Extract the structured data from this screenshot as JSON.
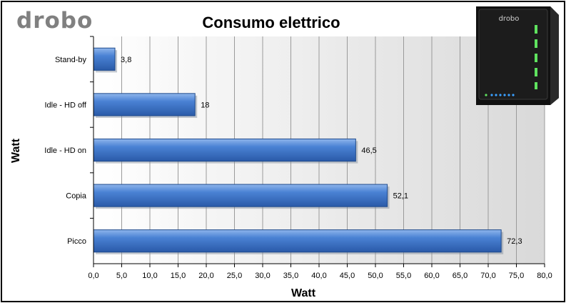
{
  "brand": {
    "logo_text": "drobo"
  },
  "chart_data": {
    "type": "bar",
    "orientation": "horizontal",
    "title": "Consumo elettrico",
    "xlabel": "Watt",
    "ylabel": "Watt",
    "categories": [
      "Stand-by",
      "Idle - HD off",
      "Idle - HD on",
      "Copia",
      "Picco"
    ],
    "values": [
      3.8,
      18,
      46.5,
      52.1,
      72.3
    ],
    "data_labels": [
      "3,8",
      "18",
      "46,5",
      "52,1",
      "72,3"
    ],
    "xlim": [
      0,
      80
    ],
    "xticks": [
      "0,0",
      "5,0",
      "10,0",
      "15,0",
      "20,0",
      "25,0",
      "30,0",
      "35,0",
      "40,0",
      "45,0",
      "50,0",
      "55,0",
      "60,0",
      "65,0",
      "70,0",
      "75,0",
      "80,0"
    ],
    "tick_step": 5,
    "grid": true,
    "legend": "none",
    "bar_color": "#3b73c8"
  }
}
